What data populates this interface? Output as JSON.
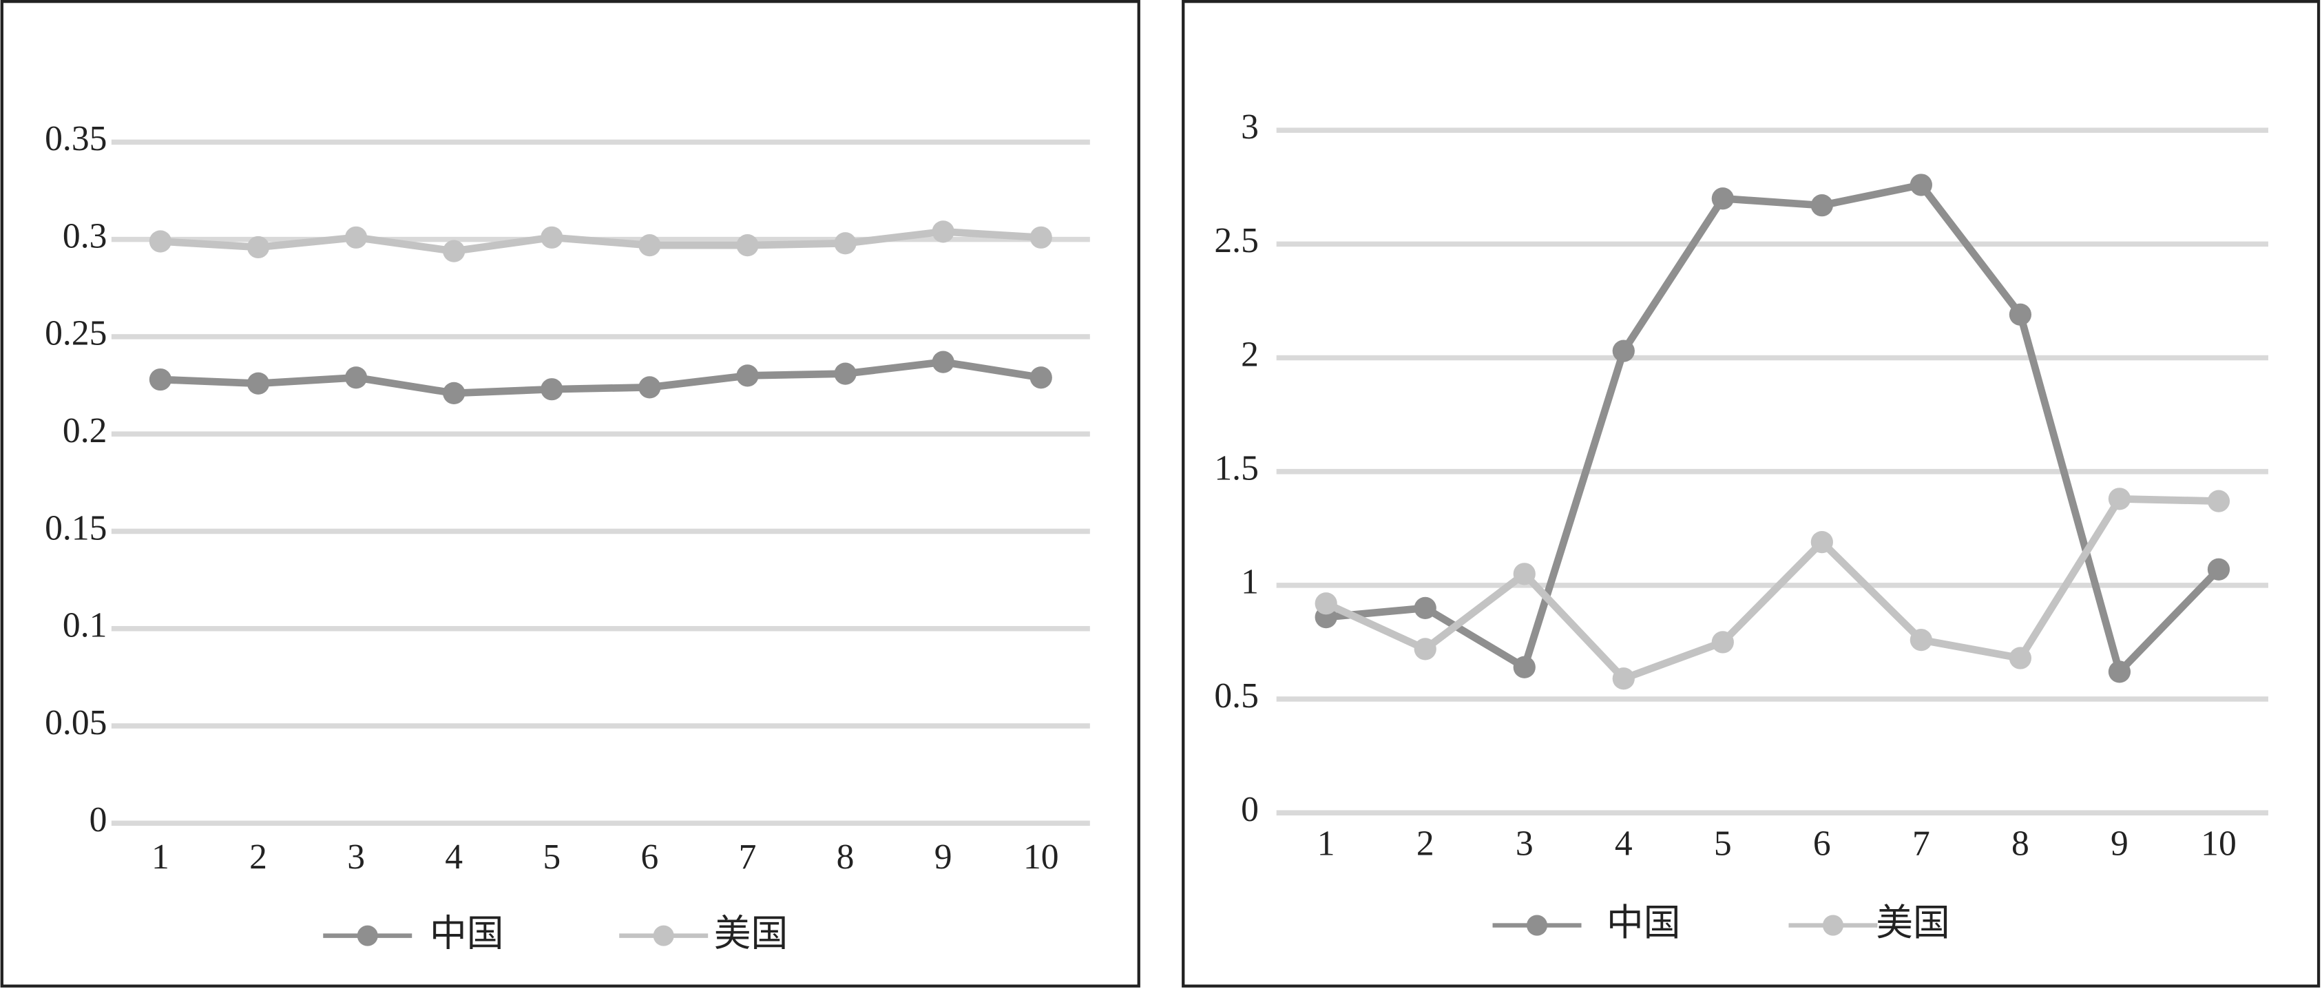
{
  "chart_data": [
    {
      "type": "line",
      "categories": [
        "1",
        "2",
        "3",
        "4",
        "5",
        "6",
        "7",
        "8",
        "9",
        "10"
      ],
      "series": [
        {
          "name": "中国",
          "color": "#8f8f8f",
          "values": [
            0.228,
            0.226,
            0.229,
            0.221,
            0.223,
            0.224,
            0.23,
            0.231,
            0.237,
            0.229
          ]
        },
        {
          "name": "美国",
          "color": "#c3c3c3",
          "values": [
            0.299,
            0.296,
            0.301,
            0.294,
            0.301,
            0.297,
            0.297,
            0.298,
            0.304,
            0.301
          ]
        }
      ],
      "ylim": [
        0,
        0.35
      ],
      "yticks": [
        0,
        0.05,
        0.1,
        0.15,
        0.2,
        0.25,
        0.3,
        0.35
      ],
      "grid": true,
      "legend": "bottom"
    },
    {
      "type": "line",
      "categories": [
        "1",
        "2",
        "3",
        "4",
        "5",
        "6",
        "7",
        "8",
        "9",
        "10"
      ],
      "series": [
        {
          "name": "中国",
          "color": "#8f8f8f",
          "values": [
            0.86,
            0.9,
            0.64,
            2.03,
            2.7,
            2.67,
            2.76,
            2.19,
            0.62,
            1.07
          ]
        },
        {
          "name": "美国",
          "color": "#c3c3c3",
          "values": [
            0.92,
            0.72,
            1.05,
            0.59,
            0.75,
            1.19,
            0.76,
            0.68,
            1.38,
            1.37
          ]
        }
      ],
      "ylim": [
        0,
        3
      ],
      "yticks": [
        0,
        0.5,
        1,
        1.5,
        2,
        2.5,
        3
      ],
      "grid": true,
      "legend": "bottom"
    }
  ]
}
